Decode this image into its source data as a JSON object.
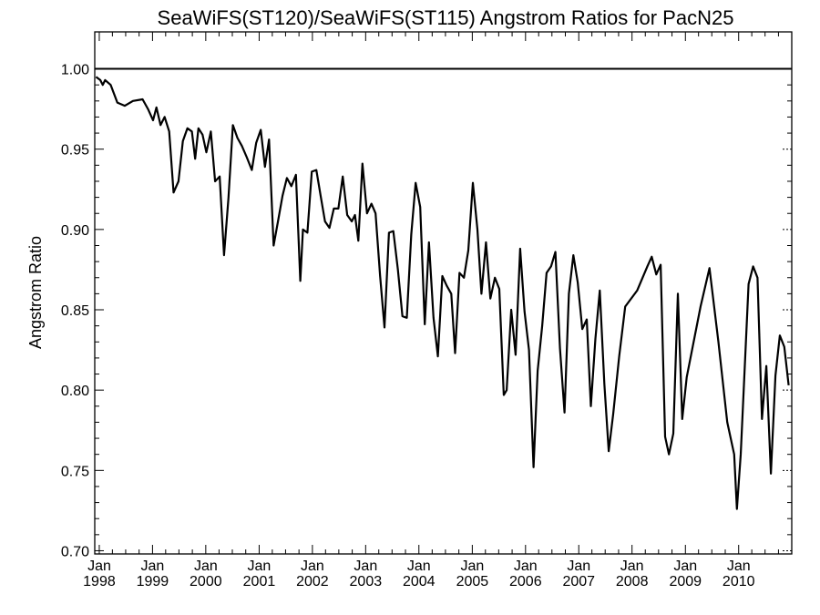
{
  "chart_data": {
    "type": "line",
    "title": "SeaWiFS(ST120)/SeaWiFS(ST115)  Angstrom Ratios for PacN25",
    "xlabel": "",
    "ylabel": "Angstrom Ratio",
    "xlim": [
      "1997-12-01",
      "2010-12-31"
    ],
    "ylim": [
      0.698,
      1.023
    ],
    "grid": false,
    "reference_line": 1.0,
    "x_ticks": [
      {
        "month": "Jan",
        "year": "1998",
        "date": "1998-01-01"
      },
      {
        "month": "Jan",
        "year": "1999",
        "date": "1999-01-01"
      },
      {
        "month": "Jan",
        "year": "2000",
        "date": "2000-01-01"
      },
      {
        "month": "Jan",
        "year": "2001",
        "date": "2001-01-01"
      },
      {
        "month": "Jan",
        "year": "2002",
        "date": "2002-01-01"
      },
      {
        "month": "Jan",
        "year": "2003",
        "date": "2003-01-01"
      },
      {
        "month": "Jan",
        "year": "2004",
        "date": "2004-01-01"
      },
      {
        "month": "Jan",
        "year": "2005",
        "date": "2005-01-01"
      },
      {
        "month": "Jan",
        "year": "2006",
        "date": "2006-01-01"
      },
      {
        "month": "Jan",
        "year": "2007",
        "date": "2007-01-01"
      },
      {
        "month": "Jan",
        "year": "2008",
        "date": "2008-01-01"
      },
      {
        "month": "Jan",
        "year": "2009",
        "date": "2009-01-01"
      },
      {
        "month": "Jan",
        "year": "2010",
        "date": "2010-01-01"
      }
    ],
    "y_ticks": [
      {
        "value": 0.7,
        "label": "0.70"
      },
      {
        "value": 0.75,
        "label": "0.75"
      },
      {
        "value": 0.8,
        "label": "0.80"
      },
      {
        "value": 0.85,
        "label": "0.85"
      },
      {
        "value": 0.9,
        "label": "0.90"
      },
      {
        "value": 0.95,
        "label": "0.95"
      },
      {
        "value": 1.0,
        "label": "1.00"
      }
    ],
    "series": [
      {
        "points": [
          [
            "1997-12-10",
            0.995
          ],
          [
            "1998-01-08",
            0.993
          ],
          [
            "1998-01-25",
            0.99
          ],
          [
            "1998-02-10",
            0.993
          ],
          [
            "1998-03-20",
            0.99
          ],
          [
            "1998-05-05",
            0.979
          ],
          [
            "1998-06-25",
            0.977
          ],
          [
            "1998-08-20",
            0.98
          ],
          [
            "1998-10-25",
            0.981
          ],
          [
            "1998-12-01",
            0.975
          ],
          [
            "1999-01-05",
            0.968
          ],
          [
            "1999-01-28",
            0.976
          ],
          [
            "1999-02-25",
            0.965
          ],
          [
            "1999-03-25",
            0.97
          ],
          [
            "1999-04-25",
            0.961
          ],
          [
            "1999-05-25",
            0.923
          ],
          [
            "1999-06-28",
            0.93
          ],
          [
            "1999-07-28",
            0.955
          ],
          [
            "1999-08-28",
            0.963
          ],
          [
            "1999-09-28",
            0.961
          ],
          [
            "1999-10-20",
            0.944
          ],
          [
            "1999-11-12",
            0.963
          ],
          [
            "1999-12-10",
            0.959
          ],
          [
            "2000-01-05",
            0.948
          ],
          [
            "2000-02-05",
            0.961
          ],
          [
            "2000-03-05",
            0.93
          ],
          [
            "2000-04-05",
            0.933
          ],
          [
            "2000-05-05",
            0.884
          ],
          [
            "2000-06-05",
            0.92
          ],
          [
            "2000-07-05",
            0.965
          ],
          [
            "2000-08-05",
            0.957
          ],
          [
            "2000-09-05",
            0.952
          ],
          [
            "2000-10-08",
            0.945
          ],
          [
            "2000-11-12",
            0.937
          ],
          [
            "2000-12-12",
            0.954
          ],
          [
            "2001-01-12",
            0.962
          ],
          [
            "2001-02-10",
            0.939
          ],
          [
            "2001-03-10",
            0.956
          ],
          [
            "2001-04-10",
            0.89
          ],
          [
            "2001-05-10",
            0.905
          ],
          [
            "2001-06-10",
            0.921
          ],
          [
            "2001-07-10",
            0.932
          ],
          [
            "2001-08-10",
            0.927
          ],
          [
            "2001-09-10",
            0.934
          ],
          [
            "2001-10-10",
            0.868
          ],
          [
            "2001-10-28",
            0.9
          ],
          [
            "2001-11-28",
            0.898
          ],
          [
            "2001-12-28",
            0.936
          ],
          [
            "2002-01-28",
            0.937
          ],
          [
            "2002-02-28",
            0.92
          ],
          [
            "2002-03-28",
            0.905
          ],
          [
            "2002-04-28",
            0.901
          ],
          [
            "2002-05-28",
            0.913
          ],
          [
            "2002-06-28",
            0.913
          ],
          [
            "2002-07-28",
            0.933
          ],
          [
            "2002-08-28",
            0.909
          ],
          [
            "2002-09-28",
            0.905
          ],
          [
            "2002-10-20",
            0.909
          ],
          [
            "2002-11-12",
            0.893
          ],
          [
            "2002-12-10",
            0.941
          ],
          [
            "2003-01-10",
            0.91
          ],
          [
            "2003-02-10",
            0.916
          ],
          [
            "2003-03-10",
            0.91
          ],
          [
            "2003-04-10",
            0.871
          ],
          [
            "2003-05-10",
            0.839
          ],
          [
            "2003-06-10",
            0.898
          ],
          [
            "2003-07-10",
            0.899
          ],
          [
            "2003-08-10",
            0.875
          ],
          [
            "2003-09-10",
            0.846
          ],
          [
            "2003-10-10",
            0.845
          ],
          [
            "2003-11-10",
            0.897
          ],
          [
            "2003-12-10",
            0.929
          ],
          [
            "2004-01-10",
            0.914
          ],
          [
            "2004-02-10",
            0.841
          ],
          [
            "2004-03-10",
            0.892
          ],
          [
            "2004-04-10",
            0.845
          ],
          [
            "2004-05-10",
            0.821
          ],
          [
            "2004-06-10",
            0.871
          ],
          [
            "2004-07-10",
            0.865
          ],
          [
            "2004-08-10",
            0.86
          ],
          [
            "2004-09-05",
            0.823
          ],
          [
            "2004-10-05",
            0.873
          ],
          [
            "2004-11-05",
            0.87
          ],
          [
            "2004-12-05",
            0.887
          ],
          [
            "2005-01-05",
            0.929
          ],
          [
            "2005-02-05",
            0.9
          ],
          [
            "2005-03-05",
            0.86
          ],
          [
            "2005-04-05",
            0.892
          ],
          [
            "2005-05-05",
            0.857
          ],
          [
            "2005-06-05",
            0.87
          ],
          [
            "2005-07-05",
            0.863
          ],
          [
            "2005-08-05",
            0.797
          ],
          [
            "2005-08-25",
            0.8
          ],
          [
            "2005-09-25",
            0.85
          ],
          [
            "2005-10-25",
            0.822
          ],
          [
            "2005-11-25",
            0.888
          ],
          [
            "2005-12-25",
            0.849
          ],
          [
            "2006-01-25",
            0.825
          ],
          [
            "2006-02-25",
            0.752
          ],
          [
            "2006-03-25",
            0.812
          ],
          [
            "2006-04-25",
            0.84
          ],
          [
            "2006-05-25",
            0.873
          ],
          [
            "2006-06-25",
            0.877
          ],
          [
            "2006-07-25",
            0.886
          ],
          [
            "2006-08-25",
            0.826
          ],
          [
            "2006-09-25",
            0.786
          ],
          [
            "2006-10-25",
            0.86
          ],
          [
            "2006-11-25",
            0.884
          ],
          [
            "2006-12-25",
            0.867
          ],
          [
            "2007-01-25",
            0.838
          ],
          [
            "2007-02-25",
            0.844
          ],
          [
            "2007-03-25",
            0.79
          ],
          [
            "2007-04-25",
            0.832
          ],
          [
            "2007-05-25",
            0.862
          ],
          [
            "2007-06-25",
            0.804
          ],
          [
            "2007-07-25",
            0.762
          ],
          [
            "2007-08-25",
            0.785
          ],
          [
            "2007-10-05",
            0.821
          ],
          [
            "2007-11-15",
            0.852
          ],
          [
            "2008-02-05",
            0.862
          ],
          [
            "2008-04-15",
            0.877
          ],
          [
            "2008-05-15",
            0.883
          ],
          [
            "2008-06-15",
            0.872
          ],
          [
            "2008-07-15",
            0.878
          ],
          [
            "2008-08-15",
            0.771
          ],
          [
            "2008-09-10",
            0.76
          ],
          [
            "2008-10-10",
            0.773
          ],
          [
            "2008-11-10",
            0.86
          ],
          [
            "2008-12-10",
            0.782
          ],
          [
            "2009-01-10",
            0.808
          ],
          [
            "2009-04-15",
            0.852
          ],
          [
            "2009-06-15",
            0.876
          ],
          [
            "2009-08-15",
            0.83
          ],
          [
            "2009-10-15",
            0.78
          ],
          [
            "2009-12-01",
            0.76
          ],
          [
            "2009-12-20",
            0.726
          ],
          [
            "2010-01-15",
            0.76
          ],
          [
            "2010-03-10",
            0.866
          ],
          [
            "2010-04-10",
            0.877
          ],
          [
            "2010-05-10",
            0.87
          ],
          [
            "2010-06-10",
            0.782
          ],
          [
            "2010-07-10",
            0.815
          ],
          [
            "2010-08-10",
            0.748
          ],
          [
            "2010-09-10",
            0.809
          ],
          [
            "2010-10-10",
            0.834
          ],
          [
            "2010-11-10",
            0.827
          ],
          [
            "2010-12-10",
            0.803
          ]
        ]
      }
    ]
  }
}
